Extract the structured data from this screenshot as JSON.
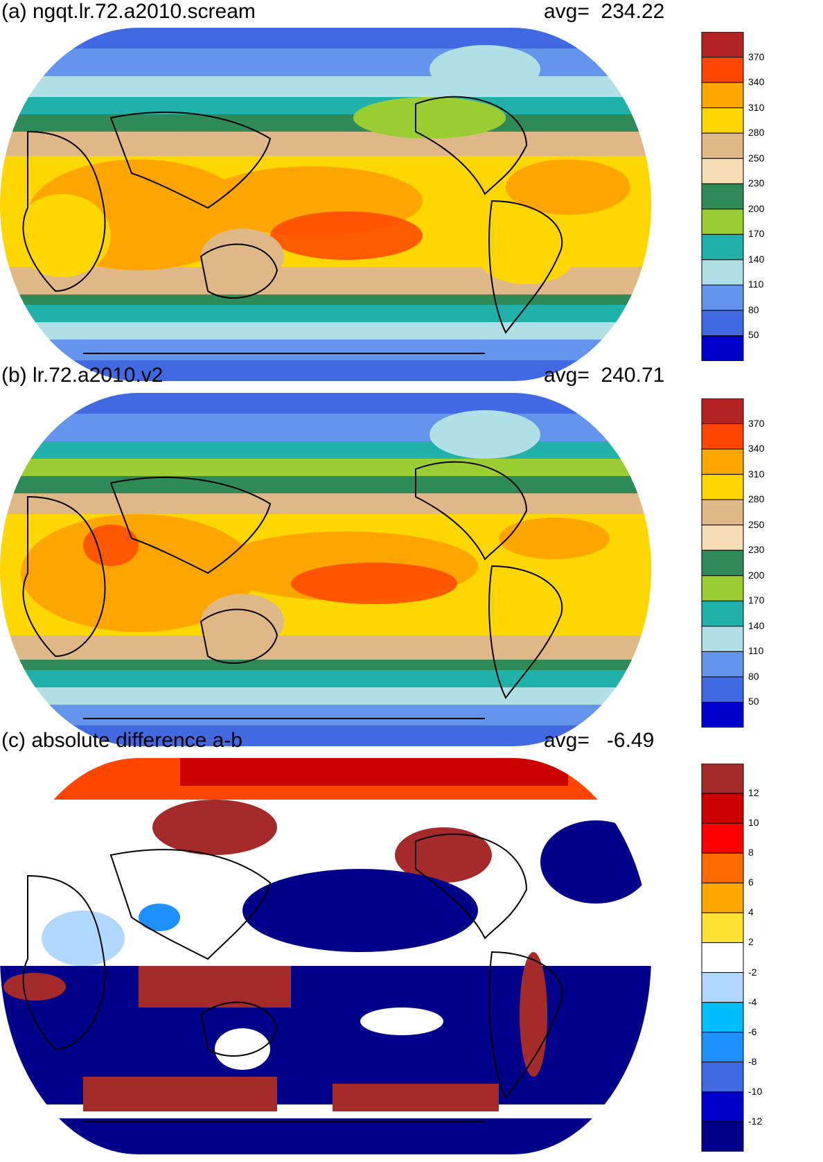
{
  "panels": [
    {
      "id": "a",
      "title": "(a) ngqt.lr.72.a2010.scream",
      "avg_label": "avg=  234.22",
      "colorbar": {
        "levels": [
          "370",
          "340",
          "310",
          "280",
          "250",
          "230",
          "200",
          "170",
          "140",
          "110",
          "80",
          "50"
        ],
        "colors": [
          "#b22222",
          "#ff4500",
          "#ffa500",
          "#ffd700",
          "#deb887",
          "#f5deb3",
          "#2e8b57",
          "#9acd32",
          "#20b2aa",
          "#b0e0e6",
          "#6495ed",
          "#4169e1",
          "#0000cd"
        ]
      }
    },
    {
      "id": "b",
      "title": "(b) lr.72.a2010.v2",
      "avg_label": "avg=  240.71",
      "colorbar": {
        "levels": [
          "370",
          "340",
          "310",
          "280",
          "250",
          "230",
          "200",
          "170",
          "140",
          "110",
          "80",
          "50"
        ],
        "colors": [
          "#b22222",
          "#ff4500",
          "#ffa500",
          "#ffd700",
          "#deb887",
          "#f5deb3",
          "#2e8b57",
          "#9acd32",
          "#20b2aa",
          "#b0e0e6",
          "#6495ed",
          "#4169e1",
          "#0000cd"
        ]
      }
    },
    {
      "id": "c",
      "title": "(c) absolute difference a-b",
      "avg_label": "avg=   -6.49",
      "colorbar": {
        "levels": [
          "12",
          "10",
          "8",
          "6",
          "4",
          "2",
          "-2",
          "-4",
          "-6",
          "-8",
          "-10",
          "-12"
        ],
        "colors": [
          "#a52a2a",
          "#cd0000",
          "#ff0000",
          "#ff6a00",
          "#ffa500",
          "#ffe135",
          "#ffffff",
          "#b0d8ff",
          "#00bfff",
          "#1e90ff",
          "#4169e1",
          "#0000cd",
          "#00008b"
        ]
      }
    }
  ]
}
